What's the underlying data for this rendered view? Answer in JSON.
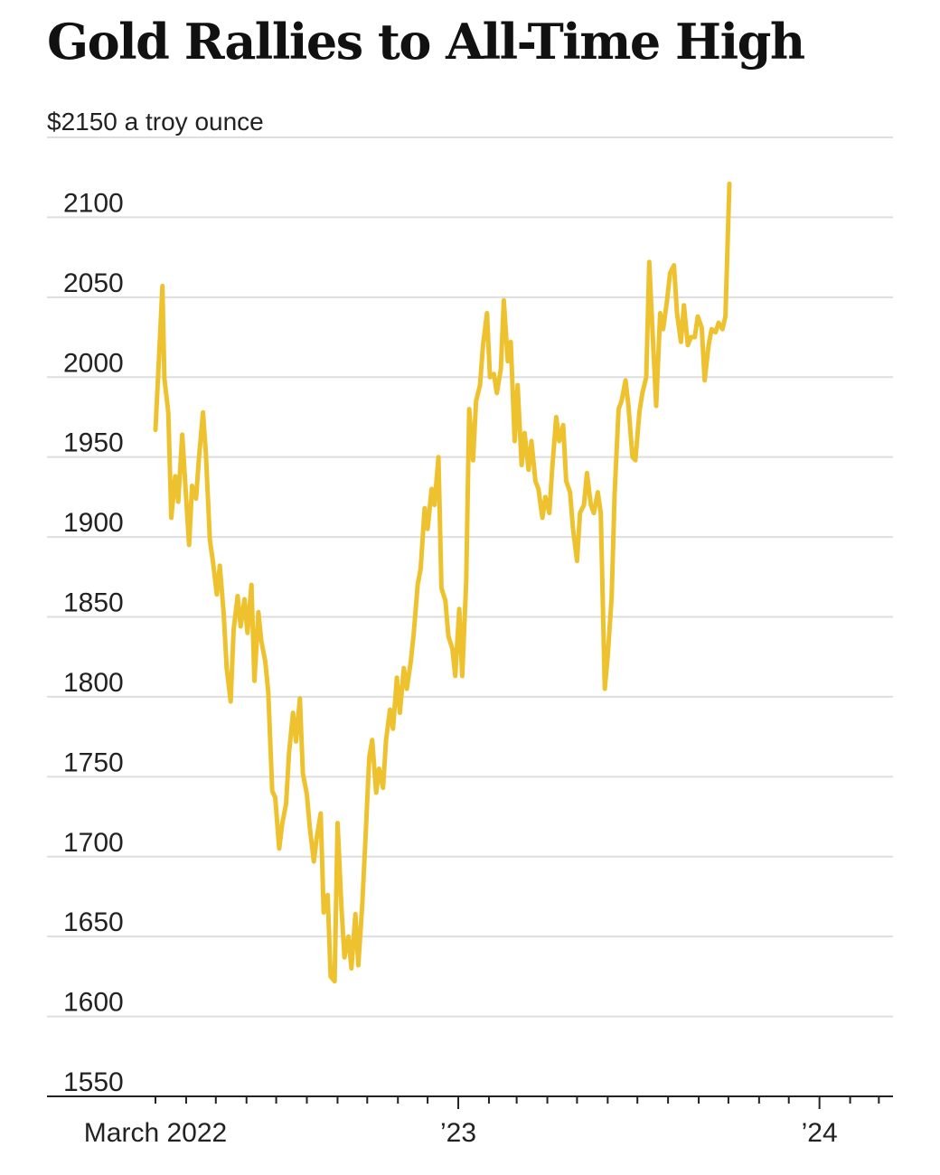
{
  "chart_data": {
    "type": "line",
    "title": "Gold Rallies to All-Time High",
    "unit_label": "$2150 a troy ounce",
    "y_ticks": [
      2100,
      2050,
      2000,
      1950,
      1900,
      1850,
      1800,
      1750,
      1700,
      1650,
      1600,
      1550
    ],
    "ylim": [
      1550,
      2150
    ],
    "x_range": [
      "2022-03-01",
      "2024-03-08"
    ],
    "x_labels": [
      {
        "date": "2022-03-01",
        "label": "March 2022"
      },
      {
        "date": "2023-01-01",
        "label": "’23"
      },
      {
        "date": "2024-01-01",
        "label": "’24"
      }
    ],
    "grid": true,
    "line_color": "#eec22f",
    "series": [
      {
        "points": [
          [
            "2022-03-01",
            1967
          ],
          [
            "2022-03-04",
            2005
          ],
          [
            "2022-03-08",
            2057
          ],
          [
            "2022-03-10",
            1999
          ],
          [
            "2022-03-14",
            1978
          ],
          [
            "2022-03-17",
            1912
          ],
          [
            "2022-03-21",
            1938
          ],
          [
            "2022-03-24",
            1922
          ],
          [
            "2022-03-28",
            1964
          ],
          [
            "2022-03-31",
            1935
          ],
          [
            "2022-04-04",
            1895
          ],
          [
            "2022-04-07",
            1932
          ],
          [
            "2022-04-11",
            1924
          ],
          [
            "2022-04-14",
            1950
          ],
          [
            "2022-04-18",
            1978
          ],
          [
            "2022-04-21",
            1952
          ],
          [
            "2022-04-25",
            1898
          ],
          [
            "2022-04-28",
            1885
          ],
          [
            "2022-05-02",
            1864
          ],
          [
            "2022-05-05",
            1882
          ],
          [
            "2022-05-09",
            1852
          ],
          [
            "2022-05-12",
            1818
          ],
          [
            "2022-05-16",
            1797
          ],
          [
            "2022-05-19",
            1842
          ],
          [
            "2022-05-23",
            1863
          ],
          [
            "2022-05-26",
            1844
          ],
          [
            "2022-05-30",
            1861
          ],
          [
            "2022-06-02",
            1840
          ],
          [
            "2022-06-06",
            1870
          ],
          [
            "2022-06-09",
            1810
          ],
          [
            "2022-06-13",
            1853
          ],
          [
            "2022-06-16",
            1835
          ],
          [
            "2022-06-20",
            1822
          ],
          [
            "2022-06-23",
            1803
          ],
          [
            "2022-06-27",
            1741
          ],
          [
            "2022-06-30",
            1737
          ],
          [
            "2022-07-04",
            1705
          ],
          [
            "2022-07-07",
            1720
          ],
          [
            "2022-07-11",
            1733
          ],
          [
            "2022-07-14",
            1765
          ],
          [
            "2022-07-18",
            1790
          ],
          [
            "2022-07-21",
            1772
          ],
          [
            "2022-07-25",
            1799
          ],
          [
            "2022-07-28",
            1752
          ],
          [
            "2022-08-01",
            1739
          ],
          [
            "2022-08-04",
            1718
          ],
          [
            "2022-08-08",
            1697
          ],
          [
            "2022-08-11",
            1712
          ],
          [
            "2022-08-15",
            1727
          ],
          [
            "2022-08-18",
            1665
          ],
          [
            "2022-08-22",
            1676
          ],
          [
            "2022-08-25",
            1625
          ],
          [
            "2022-08-29",
            1622
          ],
          [
            "2022-09-01",
            1721
          ],
          [
            "2022-09-05",
            1668
          ],
          [
            "2022-09-08",
            1637
          ],
          [
            "2022-09-12",
            1650
          ],
          [
            "2022-09-15",
            1630
          ],
          [
            "2022-09-19",
            1664
          ],
          [
            "2022-09-22",
            1632
          ],
          [
            "2022-09-26",
            1670
          ],
          [
            "2022-09-29",
            1708
          ],
          [
            "2022-10-03",
            1762
          ],
          [
            "2022-10-06",
            1773
          ],
          [
            "2022-10-10",
            1740
          ],
          [
            "2022-10-13",
            1755
          ],
          [
            "2022-10-17",
            1743
          ],
          [
            "2022-10-20",
            1773
          ],
          [
            "2022-10-24",
            1792
          ],
          [
            "2022-10-27",
            1780
          ],
          [
            "2022-10-31",
            1812
          ],
          [
            "2022-11-03",
            1790
          ],
          [
            "2022-11-07",
            1818
          ],
          [
            "2022-11-10",
            1805
          ],
          [
            "2022-11-14",
            1822
          ],
          [
            "2022-11-17",
            1840
          ],
          [
            "2022-11-21",
            1870
          ],
          [
            "2022-11-24",
            1880
          ],
          [
            "2022-11-28",
            1918
          ],
          [
            "2022-12-01",
            1905
          ],
          [
            "2022-12-05",
            1930
          ],
          [
            "2022-12-08",
            1920
          ],
          [
            "2022-12-12",
            1950
          ],
          [
            "2022-12-15",
            1868
          ],
          [
            "2022-12-19",
            1860
          ],
          [
            "2022-12-22",
            1838
          ],
          [
            "2022-12-26",
            1830
          ],
          [
            "2022-12-29",
            1813
          ],
          [
            "2023-01-02",
            1855
          ],
          [
            "2023-01-05",
            1813
          ],
          [
            "2023-01-09",
            1872
          ],
          [
            "2023-01-12",
            1980
          ],
          [
            "2023-01-16",
            1948
          ],
          [
            "2023-01-19",
            1985
          ],
          [
            "2023-01-23",
            1995
          ],
          [
            "2023-01-26",
            2020
          ],
          [
            "2023-01-30",
            2040
          ],
          [
            "2023-02-02",
            2000
          ],
          [
            "2023-02-06",
            2002
          ],
          [
            "2023-02-09",
            1990
          ],
          [
            "2023-02-13",
            2005
          ],
          [
            "2023-02-16",
            2048
          ],
          [
            "2023-02-20",
            2010
          ],
          [
            "2023-02-23",
            2022
          ],
          [
            "2023-02-27",
            1960
          ],
          [
            "2023-03-02",
            1995
          ],
          [
            "2023-03-06",
            1945
          ],
          [
            "2023-03-09",
            1965
          ],
          [
            "2023-03-13",
            1942
          ],
          [
            "2023-03-16",
            1960
          ],
          [
            "2023-03-20",
            1935
          ],
          [
            "2023-03-23",
            1930
          ],
          [
            "2023-03-27",
            1912
          ],
          [
            "2023-03-30",
            1925
          ],
          [
            "2023-04-03",
            1915
          ],
          [
            "2023-04-06",
            1943
          ],
          [
            "2023-04-10",
            1975
          ],
          [
            "2023-04-13",
            1960
          ],
          [
            "2023-04-17",
            1970
          ],
          [
            "2023-04-20",
            1935
          ],
          [
            "2023-04-24",
            1928
          ],
          [
            "2023-04-27",
            1905
          ],
          [
            "2023-05-01",
            1885
          ],
          [
            "2023-05-04",
            1915
          ],
          [
            "2023-05-08",
            1920
          ],
          [
            "2023-05-11",
            1940
          ],
          [
            "2023-05-15",
            1920
          ],
          [
            "2023-05-18",
            1915
          ],
          [
            "2023-05-22",
            1928
          ],
          [
            "2023-05-25",
            1915
          ],
          [
            "2023-05-29",
            1805
          ],
          [
            "2023-06-01",
            1825
          ],
          [
            "2023-06-05",
            1862
          ],
          [
            "2023-06-08",
            1927
          ],
          [
            "2023-06-12",
            1980
          ],
          [
            "2023-06-15",
            1985
          ],
          [
            "2023-06-19",
            1998
          ],
          [
            "2023-06-22",
            1982
          ],
          [
            "2023-06-26",
            1950
          ],
          [
            "2023-06-29",
            1948
          ],
          [
            "2023-07-03",
            1978
          ],
          [
            "2023-07-06",
            1990
          ],
          [
            "2023-07-10",
            2000
          ],
          [
            "2023-07-13",
            2072
          ],
          [
            "2023-07-17",
            2020
          ],
          [
            "2023-07-20",
            1982
          ],
          [
            "2023-07-24",
            2040
          ],
          [
            "2023-07-27",
            2030
          ],
          [
            "2023-07-31",
            2048
          ],
          [
            "2023-08-03",
            2065
          ],
          [
            "2023-08-07",
            2070
          ],
          [
            "2023-08-10",
            2040
          ],
          [
            "2023-08-14",
            2022
          ],
          [
            "2023-08-17",
            2045
          ],
          [
            "2023-08-21",
            2020
          ],
          [
            "2023-08-24",
            2025
          ],
          [
            "2023-08-28",
            2025
          ],
          [
            "2023-08-31",
            2038
          ],
          [
            "2023-09-04",
            2031
          ],
          [
            "2023-09-07",
            1998
          ],
          [
            "2023-09-11",
            2020
          ],
          [
            "2023-09-14",
            2030
          ],
          [
            "2023-09-18",
            2028
          ],
          [
            "2023-09-21",
            2034
          ],
          [
            "2023-09-25",
            2030
          ],
          [
            "2023-09-28",
            2038
          ],
          [
            "2023-10-02",
            2121
          ]
        ]
      }
    ]
  }
}
